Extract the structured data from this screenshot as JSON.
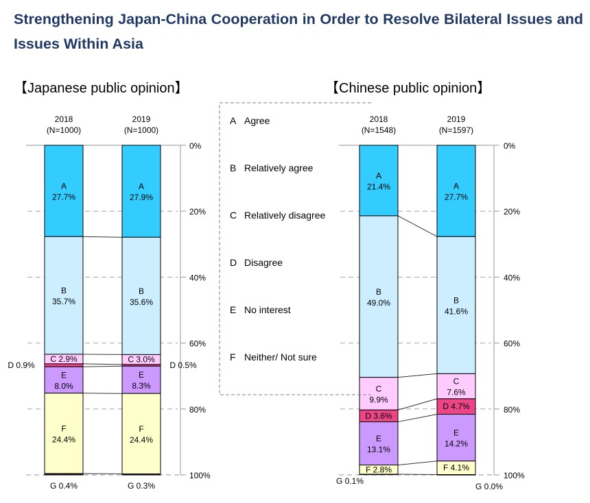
{
  "title": "Strengthening Japan-China Cooperation in Order to Resolve Bilateral Issues and Issues Within Asia",
  "colors": {
    "A": "#33ccff",
    "B": "#cceeff",
    "C": "#ffccff",
    "D": "#ee4488",
    "E": "#cc99ff",
    "F": "#ffffcc",
    "G": "#222222",
    "axis": "#a6a6a6",
    "title": "#1f3864"
  },
  "legend": [
    {
      "key": "A",
      "label": "Agree"
    },
    {
      "key": "B",
      "label": "Relatively agree"
    },
    {
      "key": "C",
      "label": "Relatively disagree"
    },
    {
      "key": "D",
      "label": "Disagree"
    },
    {
      "key": "E",
      "label": "No interest"
    },
    {
      "key": "F",
      "label": "Neither/ Not sure"
    }
  ],
  "chart_data": [
    {
      "type": "bar",
      "stacked": true,
      "title": "【Japanese public opinion】",
      "y_unit": "%",
      "ylim": [
        0,
        100
      ],
      "y_ticks": [
        "0%",
        "20%",
        "40%",
        "60%",
        "80%",
        "100%"
      ],
      "grid": true,
      "categories": [
        "2018\n(N=1000)",
        "2019\n(N=1000)"
      ],
      "series": [
        {
          "name": "A",
          "values": [
            27.7,
            27.9
          ]
        },
        {
          "name": "B",
          "values": [
            35.7,
            35.6
          ]
        },
        {
          "name": "C",
          "values": [
            2.9,
            3.0
          ]
        },
        {
          "name": "D",
          "values": [
            0.9,
            0.5
          ]
        },
        {
          "name": "E",
          "values": [
            8.0,
            8.3
          ]
        },
        {
          "name": "F",
          "values": [
            24.4,
            24.4
          ]
        },
        {
          "name": "G",
          "values": [
            0.4,
            0.3
          ]
        }
      ]
    },
    {
      "type": "bar",
      "stacked": true,
      "title": "【Chinese public opinion】",
      "y_unit": "%",
      "ylim": [
        0,
        100
      ],
      "y_ticks": [
        "0%",
        "20%",
        "40%",
        "60%",
        "80%",
        "100%"
      ],
      "grid": true,
      "categories": [
        "2018\n(N=1548)",
        "2019\n(N=1597)"
      ],
      "series": [
        {
          "name": "A",
          "values": [
            21.4,
            27.7
          ]
        },
        {
          "name": "B",
          "values": [
            49.0,
            41.6
          ]
        },
        {
          "name": "C",
          "values": [
            9.9,
            7.6
          ]
        },
        {
          "name": "D",
          "values": [
            3.6,
            4.7
          ]
        },
        {
          "name": "E",
          "values": [
            13.1,
            14.2
          ]
        },
        {
          "name": "F",
          "values": [
            2.8,
            4.1
          ]
        },
        {
          "name": "G",
          "values": [
            0.1,
            0.0
          ]
        }
      ]
    }
  ]
}
